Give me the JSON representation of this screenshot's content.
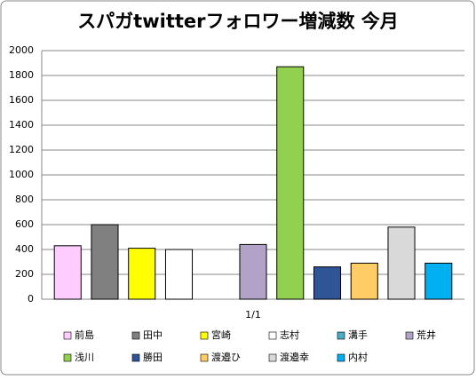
{
  "chart_data": {
    "type": "bar",
    "title": "スパガtwitterフォロワー増減数 今月",
    "categories": [
      "1/1"
    ],
    "series": [
      {
        "name": "前島",
        "color": "#ffccff",
        "values": [
          430
        ]
      },
      {
        "name": "田中",
        "color": "#808080",
        "values": [
          600
        ]
      },
      {
        "name": "宮崎",
        "color": "#ffff00",
        "values": [
          410
        ]
      },
      {
        "name": "志村",
        "color": "#ffffff",
        "values": [
          400
        ]
      },
      {
        "name": "溝手",
        "color": "#4bacc6",
        "values": [
          0
        ]
      },
      {
        "name": "荒井",
        "color": "#b3a2c7",
        "values": [
          440
        ]
      },
      {
        "name": "浅川",
        "color": "#92d050",
        "values": [
          1870
        ]
      },
      {
        "name": "勝田",
        "color": "#2f5597",
        "values": [
          260
        ]
      },
      {
        "name": "渡邉ひ",
        "color": "#ffcc66",
        "values": [
          290
        ]
      },
      {
        "name": "渡邉幸",
        "color": "#d9d9d9",
        "values": [
          580
        ]
      },
      {
        "name": "内村",
        "color": "#00b0f0",
        "values": [
          290
        ]
      }
    ],
    "ylim": [
      0,
      2000
    ],
    "yticks": [
      0,
      200,
      400,
      600,
      800,
      1000,
      1200,
      1400,
      1600,
      1800,
      2000
    ],
    "grid": true,
    "legend": "bottom"
  }
}
